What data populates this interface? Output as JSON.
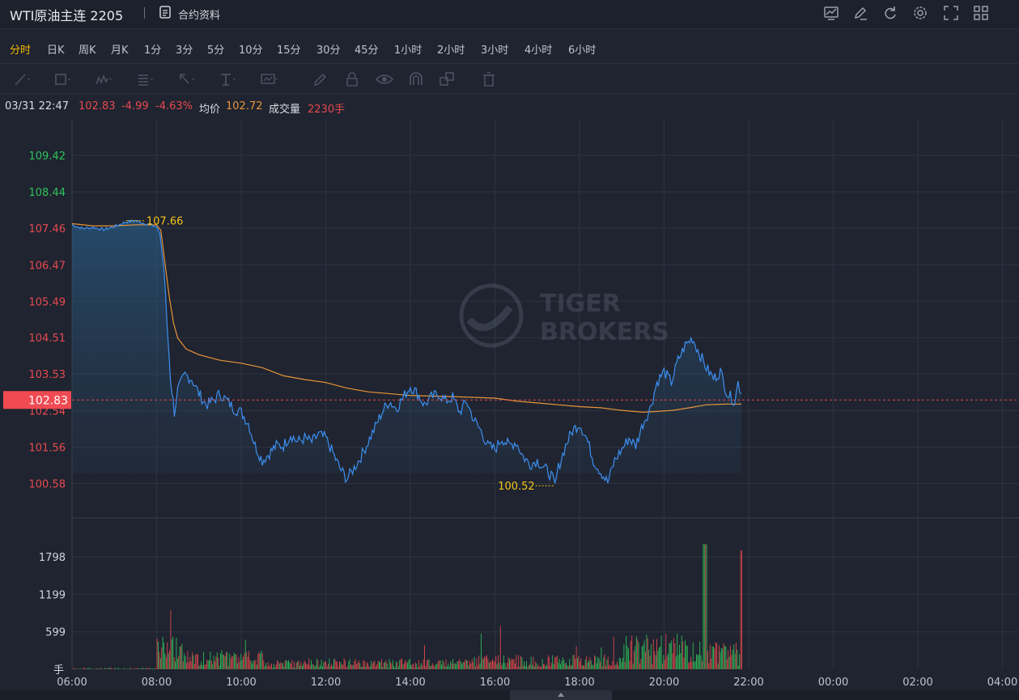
{
  "header": {
    "title": "WTI原油主连 2205",
    "contract_info_label": "合约资料",
    "toolbar_icons": [
      "chart-indicator-icon",
      "edit-icon",
      "refresh-icon",
      "settings-icon",
      "fullscreen-icon",
      "grid-layout-icon"
    ]
  },
  "periods": [
    "分时",
    "日K",
    "周K",
    "月K",
    "1分",
    "3分",
    "5分",
    "10分",
    "15分",
    "30分",
    "45分",
    "1小时",
    "2小时",
    "3小时",
    "4小时",
    "6小时"
  ],
  "active_period": "分时",
  "drawing_tools": [
    "line-tool-icon",
    "rectangle-tool-icon",
    "pattern-tool-icon",
    "fibonacci-tool-icon",
    "arrow-tool-icon",
    "text-tool-icon",
    "measure-tool-icon",
    "pencil-icon",
    "lock-icon",
    "eye-icon",
    "magnet-icon",
    "layers-icon",
    "trash-icon"
  ],
  "info": {
    "datetime": "03/31 22:47",
    "price": "102.83",
    "change": "-4.99",
    "change_pct": "-4.63%",
    "avg_label": "均价",
    "avg_value": "102.72",
    "volume_label": "成交量",
    "volume_value": "2230手"
  },
  "watermark": {
    "line1": "TIGER",
    "line2": "BROKERS"
  },
  "colors": {
    "up": "#e8494f",
    "down": "#2fc25b",
    "price_line": "#3d8ff0",
    "avg_line": "#e8943a",
    "highlight": "#f5c518"
  },
  "chart_data": {
    "type": "line",
    "price_ticks": [
      "109.42",
      "108.44",
      "107.46",
      "106.47",
      "105.49",
      "104.51",
      "103.53",
      "102.54",
      "101.56",
      "100.58"
    ],
    "price_tick_values": [
      109.42,
      108.44,
      107.46,
      106.47,
      105.49,
      104.51,
      103.53,
      102.54,
      101.56,
      100.58
    ],
    "reference_price": 102.83,
    "reference_label": "102.83",
    "high_label": "107.66",
    "low_label": "100.52",
    "volume_ticks": [
      "1798",
      "1199",
      "599"
    ],
    "volume_tick_values": [
      1798,
      1199,
      599
    ],
    "volume_unit": "手",
    "x_ticks": [
      "06:00",
      "08:00",
      "10:00",
      "12:00",
      "14:00",
      "16:00",
      "18:00",
      "20:00",
      "22:00",
      "00:00",
      "02:00",
      "04:00"
    ],
    "price_series": [
      [
        0,
        107.55
      ],
      [
        0.25,
        107.45
      ],
      [
        0.5,
        107.48
      ],
      [
        0.75,
        107.42
      ],
      [
        1.0,
        107.5
      ],
      [
        1.25,
        107.62
      ],
      [
        1.5,
        107.66
      ],
      [
        1.75,
        107.58
      ],
      [
        2.0,
        107.5
      ],
      [
        2.08,
        107.3
      ],
      [
        2.17,
        106.4
      ],
      [
        2.25,
        104.8
      ],
      [
        2.33,
        103.4
      ],
      [
        2.42,
        102.5
      ],
      [
        2.5,
        103.1
      ],
      [
        2.67,
        103.5
      ],
      [
        2.83,
        103.4
      ],
      [
        3.0,
        103.0
      ],
      [
        3.17,
        102.7
      ],
      [
        3.33,
        102.8
      ],
      [
        3.5,
        103.0
      ],
      [
        3.67,
        102.8
      ],
      [
        3.83,
        102.6
      ],
      [
        4.0,
        102.5
      ],
      [
        4.17,
        102.2
      ],
      [
        4.33,
        101.6
      ],
      [
        4.5,
        101.2
      ],
      [
        4.67,
        101.4
      ],
      [
        4.83,
        101.6
      ],
      [
        5.0,
        101.6
      ],
      [
        5.17,
        101.9
      ],
      [
        5.33,
        101.7
      ],
      [
        5.5,
        101.8
      ],
      [
        5.67,
        101.7
      ],
      [
        5.83,
        101.9
      ],
      [
        6.0,
        101.8
      ],
      [
        6.17,
        101.4
      ],
      [
        6.33,
        101.0
      ],
      [
        6.5,
        100.7
      ],
      [
        6.67,
        101.0
      ],
      [
        6.83,
        101.3
      ],
      [
        7.0,
        101.7
      ],
      [
        7.17,
        102.1
      ],
      [
        7.33,
        102.5
      ],
      [
        7.5,
        102.8
      ],
      [
        7.67,
        102.6
      ],
      [
        7.83,
        102.9
      ],
      [
        8.0,
        103.2
      ],
      [
        8.17,
        103.0
      ],
      [
        8.33,
        102.7
      ],
      [
        8.5,
        102.9
      ],
      [
        8.67,
        103.0
      ],
      [
        8.83,
        102.8
      ],
      [
        9.0,
        102.9
      ],
      [
        9.17,
        102.5
      ],
      [
        9.33,
        102.8
      ],
      [
        9.5,
        102.3
      ],
      [
        9.67,
        102.0
      ],
      [
        9.83,
        101.6
      ],
      [
        10.0,
        101.5
      ],
      [
        10.17,
        101.8
      ],
      [
        10.33,
        101.6
      ],
      [
        10.5,
        101.7
      ],
      [
        10.67,
        101.3
      ],
      [
        10.83,
        101.1
      ],
      [
        11.0,
        101.2
      ],
      [
        11.17,
        101.0
      ],
      [
        11.33,
        100.8
      ],
      [
        11.42,
        100.52
      ],
      [
        11.5,
        101.0
      ],
      [
        11.67,
        101.6
      ],
      [
        11.83,
        102.0
      ],
      [
        12.0,
        102.2
      ],
      [
        12.17,
        101.8
      ],
      [
        12.33,
        101.2
      ],
      [
        12.5,
        100.9
      ],
      [
        12.67,
        100.6
      ],
      [
        12.83,
        101.2
      ],
      [
        13.0,
        101.5
      ],
      [
        13.17,
        101.8
      ],
      [
        13.33,
        101.6
      ],
      [
        13.5,
        102.2
      ],
      [
        13.67,
        102.6
      ],
      [
        13.83,
        103.3
      ],
      [
        14.0,
        103.6
      ],
      [
        14.17,
        103.3
      ],
      [
        14.33,
        103.9
      ],
      [
        14.5,
        104.3
      ],
      [
        14.67,
        104.5
      ],
      [
        14.83,
        104.1
      ],
      [
        15.0,
        103.7
      ],
      [
        15.17,
        103.4
      ],
      [
        15.33,
        103.6
      ],
      [
        15.5,
        103.0
      ],
      [
        15.67,
        102.8
      ],
      [
        15.75,
        103.3
      ],
      [
        15.83,
        103.0
      ]
    ],
    "avg_series": [
      [
        0,
        107.58
      ],
      [
        0.5,
        107.52
      ],
      [
        1.0,
        107.52
      ],
      [
        1.5,
        107.55
      ],
      [
        2.0,
        107.55
      ],
      [
        2.1,
        107.4
      ],
      [
        2.2,
        106.5
      ],
      [
        2.3,
        105.6
      ],
      [
        2.4,
        104.9
      ],
      [
        2.5,
        104.5
      ],
      [
        2.7,
        104.2
      ],
      [
        3.0,
        104.05
      ],
      [
        3.5,
        103.9
      ],
      [
        4.0,
        103.82
      ],
      [
        4.5,
        103.7
      ],
      [
        5.0,
        103.48
      ],
      [
        5.5,
        103.38
      ],
      [
        6.0,
        103.3
      ],
      [
        6.5,
        103.15
      ],
      [
        7.0,
        103.05
      ],
      [
        8.0,
        102.95
      ],
      [
        9.0,
        102.92
      ],
      [
        10.0,
        102.88
      ],
      [
        10.5,
        102.8
      ],
      [
        11.0,
        102.75
      ],
      [
        11.5,
        102.7
      ],
      [
        12.0,
        102.65
      ],
      [
        12.5,
        102.62
      ],
      [
        13.0,
        102.55
      ],
      [
        13.5,
        102.5
      ],
      [
        13.8,
        102.52
      ],
      [
        14.2,
        102.55
      ],
      [
        14.6,
        102.62
      ],
      [
        15.0,
        102.7
      ],
      [
        15.5,
        102.72
      ],
      [
        15.83,
        102.72
      ]
    ]
  }
}
